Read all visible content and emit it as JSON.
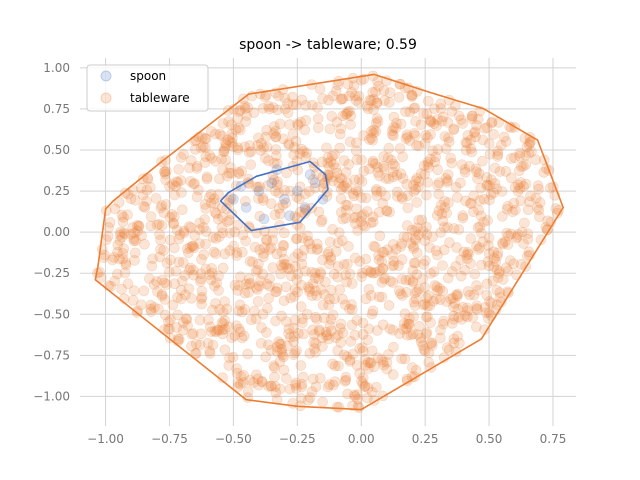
{
  "chart_data": {
    "type": "scatter",
    "title": "spoon -> tableware; 0.59",
    "xlabel": "",
    "ylabel": "",
    "xlim": [
      -1.1,
      0.84
    ],
    "ylim": [
      -1.18,
      1.06
    ],
    "xticks": [
      -1.0,
      -0.75,
      -0.5,
      -0.25,
      0.0,
      0.25,
      0.5,
      0.75
    ],
    "xtick_labels": [
      "−1.00",
      "−0.75",
      "−0.50",
      "−0.25",
      "0.00",
      "0.25",
      "0.50",
      "0.75"
    ],
    "yticks": [
      -1.0,
      -0.75,
      -0.5,
      -0.25,
      0.0,
      0.25,
      0.5,
      0.75,
      1.0
    ],
    "ytick_labels": [
      "−1.00",
      "−0.75",
      "−0.50",
      "−0.25",
      "0.00",
      "0.25",
      "0.50",
      "0.75",
      "1.00"
    ],
    "grid": true,
    "legend_position": "top-left",
    "series": [
      {
        "name": "spoon",
        "color": "#4472c4",
        "hull": [
          [
            -0.43,
            0.01
          ],
          [
            -0.24,
            0.06
          ],
          [
            -0.13,
            0.26
          ],
          [
            -0.14,
            0.35
          ],
          [
            -0.2,
            0.43
          ],
          [
            -0.41,
            0.34
          ],
          [
            -0.52,
            0.24
          ],
          [
            -0.55,
            0.19
          ]
        ],
        "points": [
          [
            -0.5,
            0.2
          ],
          [
            -0.45,
            0.15
          ],
          [
            -0.4,
            0.25
          ],
          [
            -0.35,
            0.3
          ],
          [
            -0.3,
            0.2
          ],
          [
            -0.28,
            0.1
          ],
          [
            -0.25,
            0.25
          ],
          [
            -0.2,
            0.35
          ],
          [
            -0.18,
            0.3
          ],
          [
            -0.15,
            0.2
          ],
          [
            -0.38,
            0.08
          ],
          [
            -0.47,
            0.28
          ],
          [
            -0.33,
            0.38
          ],
          [
            -0.22,
            0.15
          ]
        ]
      },
      {
        "name": "tableware",
        "color": "#ed7d31",
        "hull": [
          [
            0.05,
            0.96
          ],
          [
            0.27,
            0.85
          ],
          [
            0.48,
            0.75
          ],
          [
            0.69,
            0.56
          ],
          [
            0.79,
            0.15
          ],
          [
            0.47,
            -0.65
          ],
          [
            0.0,
            -1.08
          ],
          [
            -0.25,
            -1.06
          ],
          [
            -0.45,
            -1.02
          ],
          [
            -1.04,
            -0.29
          ],
          [
            -1.03,
            -0.21
          ],
          [
            -1.0,
            0.14
          ],
          [
            -0.97,
            0.19
          ],
          [
            -0.78,
            0.43
          ],
          [
            -0.44,
            0.84
          ]
        ],
        "points": []
      }
    ]
  }
}
